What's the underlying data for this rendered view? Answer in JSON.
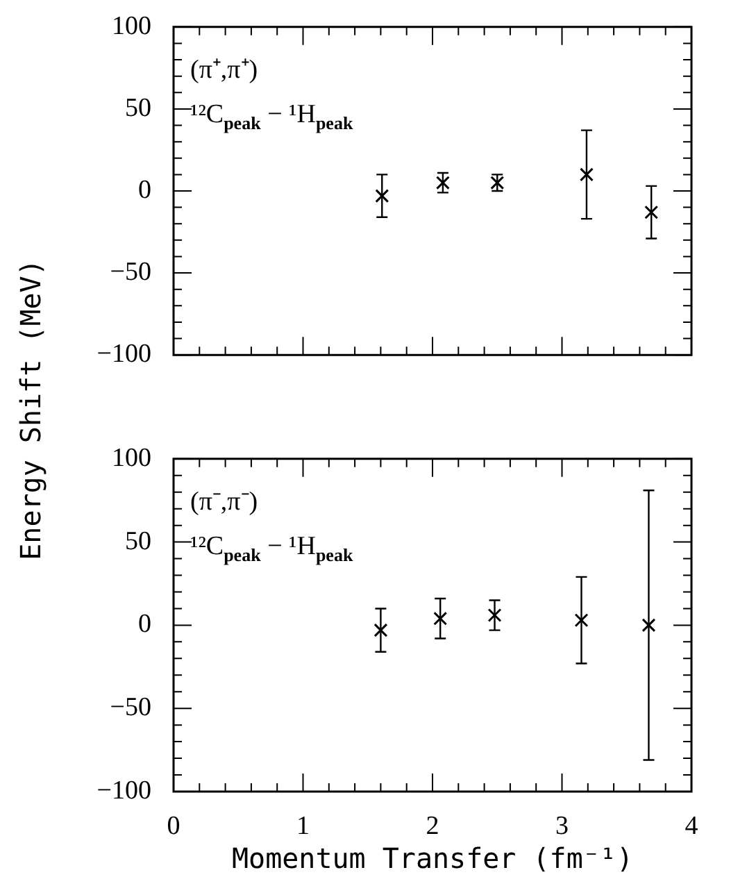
{
  "chart_data": [
    {
      "type": "scatter",
      "ylabel": "Energy Shift (MeV)",
      "annotations": [
        "(π⁺,π⁺)",
        "¹²C$_{peak}$ − ¹H$_{peak}$"
      ],
      "series": [
        {
          "color": "#000000",
          "x": [
            1.61,
            2.08,
            2.5,
            3.19,
            3.69
          ],
          "values": [
            -3,
            5,
            5,
            10,
            -13
          ],
          "errors": [
            13,
            6,
            5,
            27,
            16
          ]
        }
      ],
      "xlim": [
        0,
        4
      ],
      "ylim": [
        -100,
        100
      ],
      "marker": "cross",
      "tick_labels": "y",
      "xticks": [
        0,
        {
          "value": 0.2,
          "label": null
        },
        {
          "value": 0.4,
          "label": null
        },
        {
          "value": 0.6,
          "label": null
        },
        {
          "value": 0.8,
          "label": null
        },
        1,
        {
          "value": 1.2,
          "label": null
        },
        {
          "value": 1.4,
          "label": null
        },
        {
          "value": 1.6,
          "label": null
        },
        {
          "value": 1.8,
          "label": null
        },
        2,
        {
          "value": 2.2,
          "label": null
        },
        {
          "value": 2.4,
          "label": null
        },
        {
          "value": 2.6,
          "label": null
        },
        {
          "value": 2.8,
          "label": null
        },
        3,
        {
          "value": 3.2,
          "label": null
        },
        {
          "value": 3.4,
          "label": null
        },
        {
          "value": 3.6,
          "label": null
        },
        {
          "value": 3.8,
          "label": null
        },
        4
      ],
      "yticks": [
        -100,
        {
          "value": -90,
          "label": null
        },
        {
          "value": -80,
          "label": null
        },
        {
          "value": -70,
          "label": null
        },
        {
          "value": -60,
          "label": null
        },
        -50,
        {
          "value": -40,
          "label": null
        },
        {
          "value": -30,
          "label": null
        },
        {
          "value": -20,
          "label": null
        },
        {
          "value": -10,
          "label": null
        },
        0,
        {
          "value": 10,
          "label": null
        },
        {
          "value": 20,
          "label": null
        },
        {
          "value": 30,
          "label": null
        },
        {
          "value": 40,
          "label": null
        },
        50,
        {
          "value": 60,
          "label": null
        },
        {
          "value": 70,
          "label": null
        },
        {
          "value": 80,
          "label": null
        },
        {
          "value": 90,
          "label": null
        },
        100
      ]
    },
    {
      "type": "scatter",
      "xlabel": "Momentum Transfer (fm⁻¹)",
      "annotations": [
        "(π⁻,π⁻)",
        "¹²C$_{peak}$ − ¹H$_{peak}$"
      ],
      "series": [
        {
          "color": "#000000",
          "x": [
            1.6,
            2.06,
            2.48,
            3.15,
            3.67
          ],
          "values": [
            -3,
            4,
            6,
            3,
            0
          ],
          "errors": [
            13,
            12,
            9,
            26,
            81
          ]
        }
      ],
      "xlim": [
        0,
        4
      ],
      "ylim": [
        -100,
        100
      ],
      "marker": "cross",
      "xticks": [
        0,
        {
          "value": 0.2,
          "label": null
        },
        {
          "value": 0.4,
          "label": null
        },
        {
          "value": 0.6,
          "label": null
        },
        {
          "value": 0.8,
          "label": null
        },
        1,
        {
          "value": 1.2,
          "label": null
        },
        {
          "value": 1.4,
          "label": null
        },
        {
          "value": 1.6,
          "label": null
        },
        {
          "value": 1.8,
          "label": null
        },
        2,
        {
          "value": 2.2,
          "label": null
        },
        {
          "value": 2.4,
          "label": null
        },
        {
          "value": 2.6,
          "label": null
        },
        {
          "value": 2.8,
          "label": null
        },
        3,
        {
          "value": 3.2,
          "label": null
        },
        {
          "value": 3.4,
          "label": null
        },
        {
          "value": 3.6,
          "label": null
        },
        {
          "value": 3.8,
          "label": null
        },
        4
      ],
      "yticks": [
        -100,
        {
          "value": -90,
          "label": null
        },
        {
          "value": -80,
          "label": null
        },
        {
          "value": -70,
          "label": null
        },
        {
          "value": -60,
          "label": null
        },
        -50,
        {
          "value": -40,
          "label": null
        },
        {
          "value": -30,
          "label": null
        },
        {
          "value": -20,
          "label": null
        },
        {
          "value": -10,
          "label": null
        },
        0,
        {
          "value": 10,
          "label": null
        },
        {
          "value": 20,
          "label": null
        },
        {
          "value": 30,
          "label": null
        },
        {
          "value": 40,
          "label": null
        },
        50,
        {
          "value": 60,
          "label": null
        },
        {
          "value": 70,
          "label": null
        },
        {
          "value": 80,
          "label": null
        },
        {
          "value": 90,
          "label": null
        },
        100
      ]
    }
  ]
}
